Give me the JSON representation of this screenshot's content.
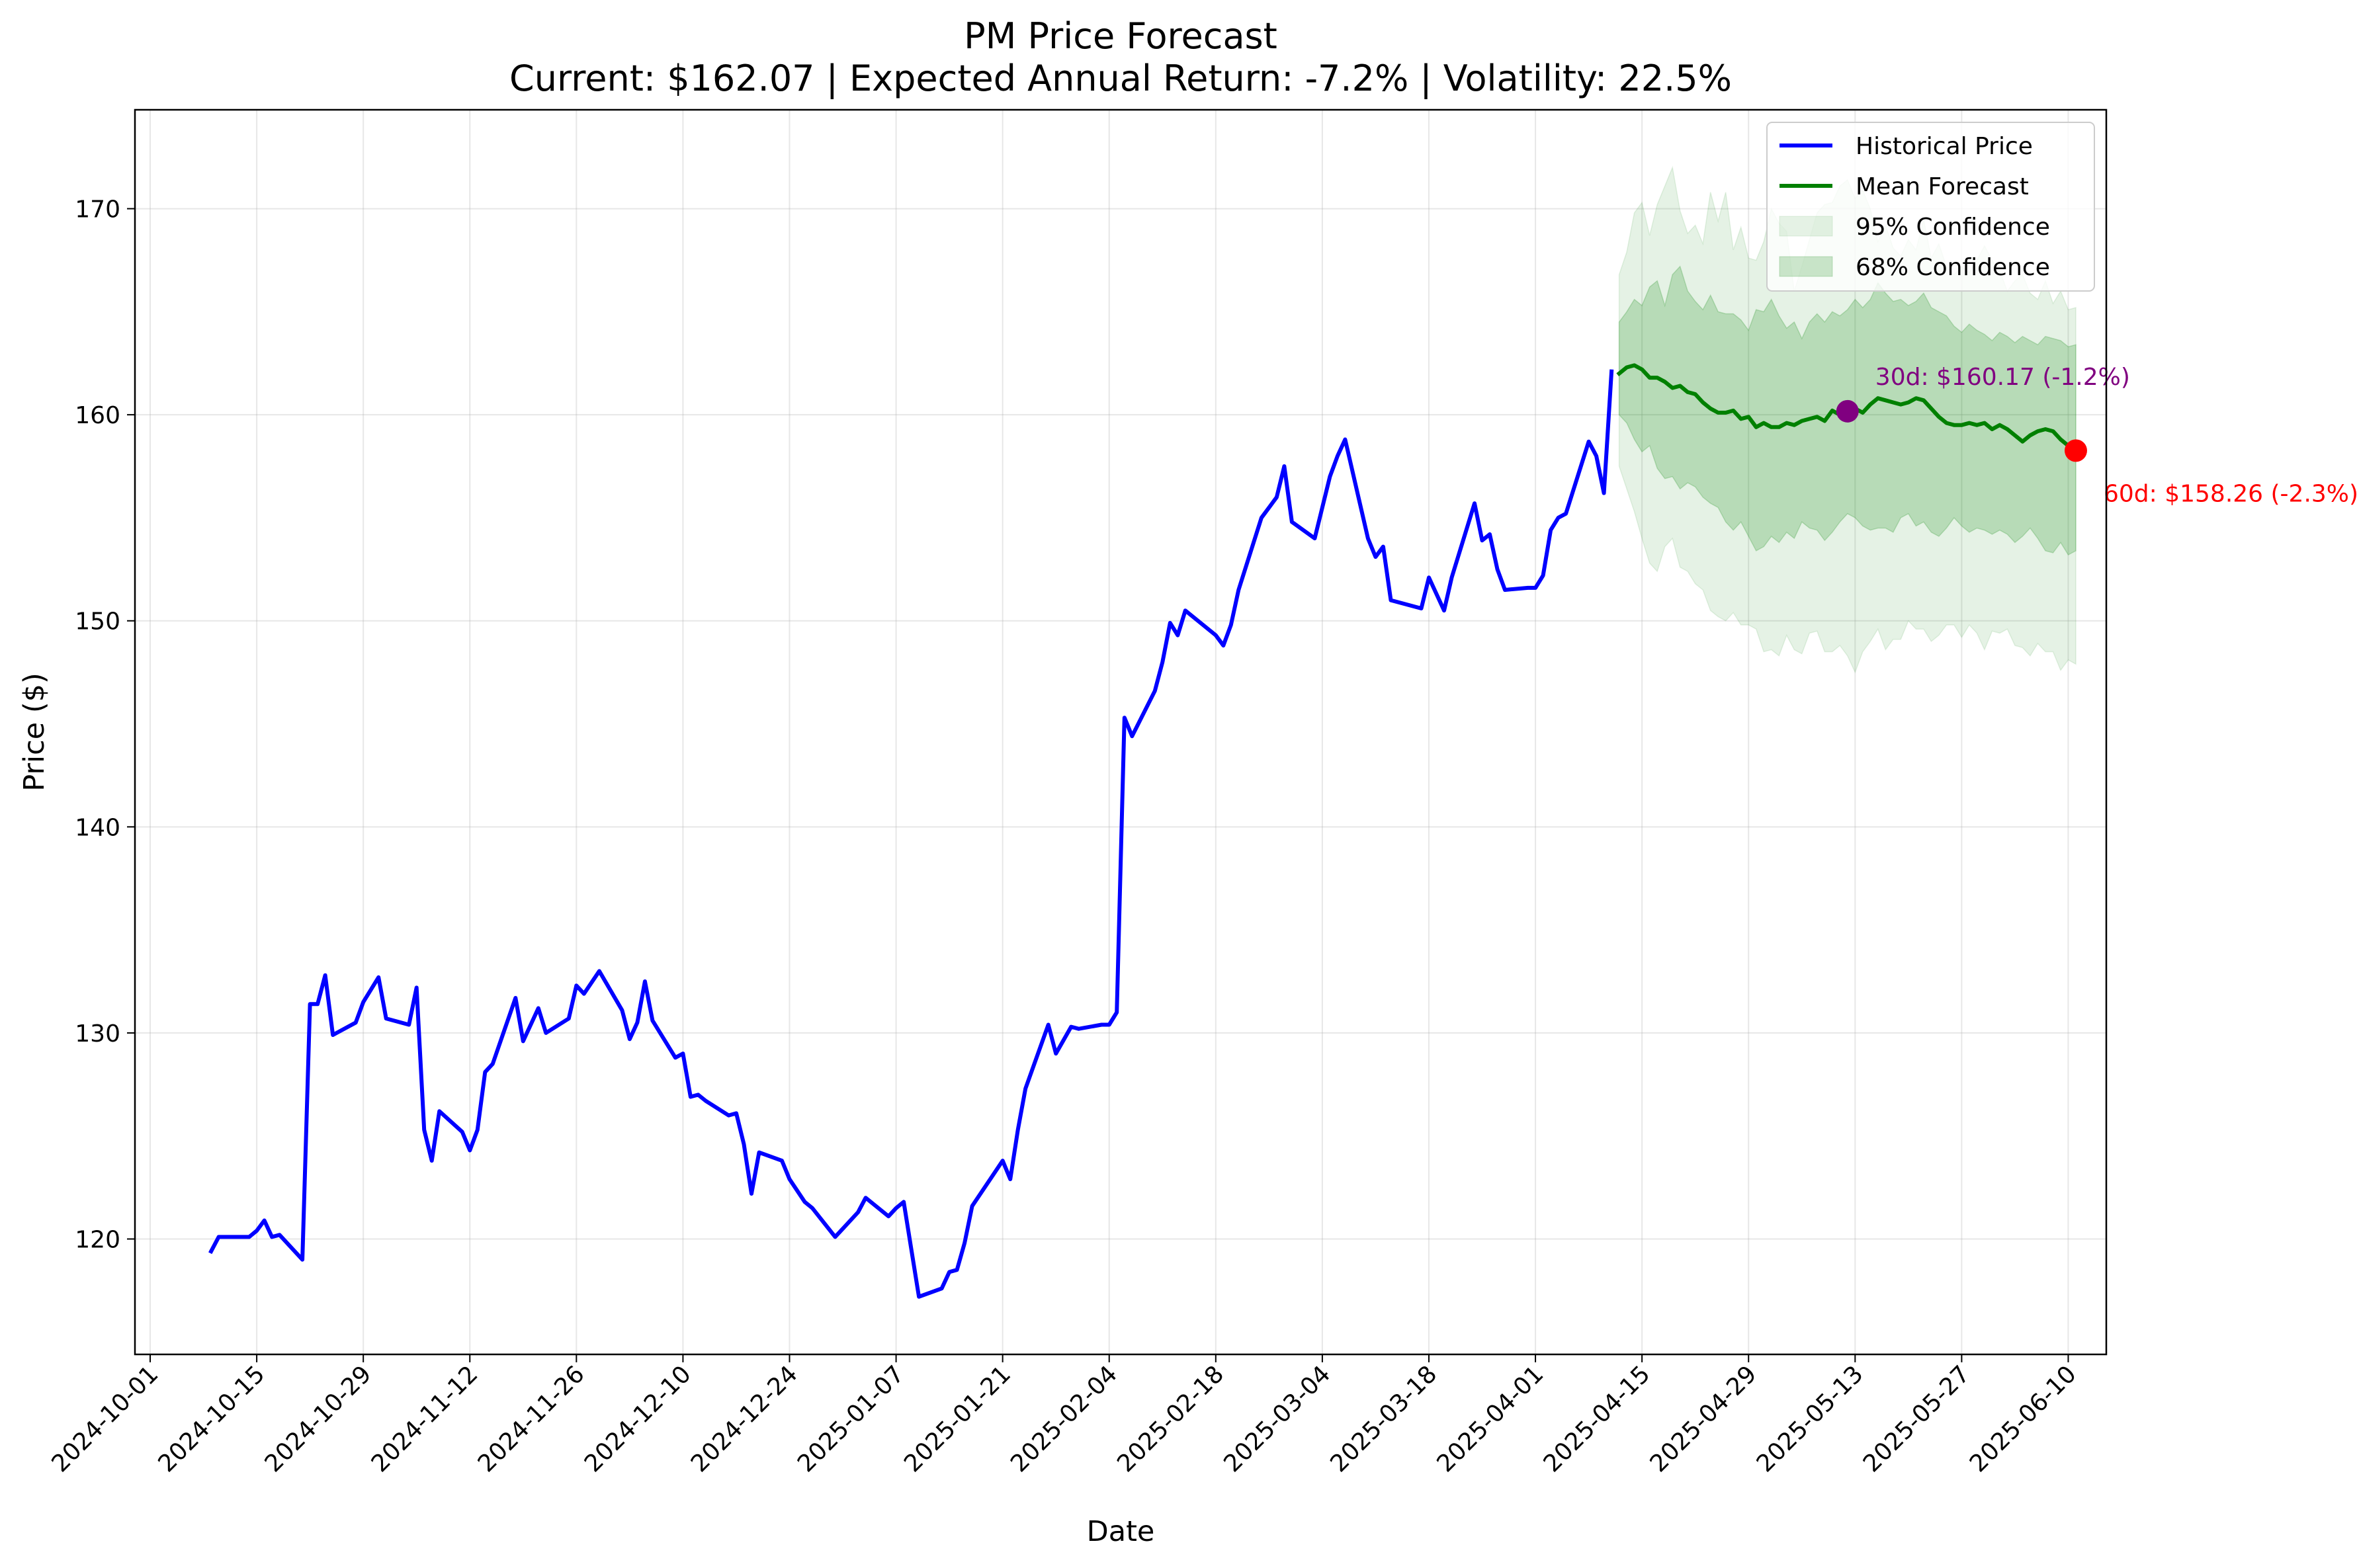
{
  "chart_data": {
    "type": "line",
    "title": "PM Price Forecast",
    "subtitle": "Current: $162.07 | Expected Annual Return: -7.2% | Volatility: 22.5%",
    "xlabel": "Date",
    "ylabel": "Price ($)",
    "xlim": [
      "2024-09-29",
      "2025-06-15"
    ],
    "ylim": [
      114.4,
      174.8
    ],
    "grid": true,
    "legend_position": "top-right",
    "x_ticks": [
      "2024-10-01",
      "2024-10-15",
      "2024-10-29",
      "2024-11-12",
      "2024-11-26",
      "2024-12-10",
      "2024-12-24",
      "2025-01-07",
      "2025-01-21",
      "2025-02-04",
      "2025-02-18",
      "2025-03-04",
      "2025-03-18",
      "2025-04-01",
      "2025-04-15",
      "2025-04-29",
      "2025-05-13",
      "2025-05-27",
      "2025-06-10"
    ],
    "y_ticks": [
      120,
      130,
      140,
      150,
      160,
      170
    ],
    "legend": [
      {
        "label": "Historical Price",
        "kind": "line",
        "color": "#0000ff"
      },
      {
        "label": "Mean Forecast",
        "kind": "line",
        "color": "#008000"
      },
      {
        "label": "95% Confidence",
        "kind": "band",
        "color": "#008000",
        "opacity": 0.1
      },
      {
        "label": "68% Confidence",
        "kind": "band",
        "color": "#008000",
        "opacity": 0.2
      }
    ],
    "series": [
      {
        "name": "Historical Price",
        "color": "#0000ff",
        "points": [
          [
            "2024-10-09",
            119.4
          ],
          [
            "2024-10-10",
            120.1
          ],
          [
            "2024-10-11",
            120.1
          ],
          [
            "2024-10-14",
            120.1
          ],
          [
            "2024-10-15",
            120.4
          ],
          [
            "2024-10-16",
            120.9
          ],
          [
            "2024-10-17",
            120.1
          ],
          [
            "2024-10-18",
            120.2
          ],
          [
            "2024-10-21",
            119.0
          ],
          [
            "2024-10-22",
            131.4
          ],
          [
            "2024-10-23",
            131.4
          ],
          [
            "2024-10-24",
            132.8
          ],
          [
            "2024-10-25",
            129.9
          ],
          [
            "2024-10-28",
            130.5
          ],
          [
            "2024-10-29",
            131.5
          ],
          [
            "2024-10-31",
            132.7
          ],
          [
            "2024-11-01",
            130.7
          ],
          [
            "2024-11-04",
            130.4
          ],
          [
            "2024-11-05",
            132.2
          ],
          [
            "2024-11-06",
            125.3
          ],
          [
            "2024-11-07",
            123.8
          ],
          [
            "2024-11-08",
            126.2
          ],
          [
            "2024-11-11",
            125.2
          ],
          [
            "2024-11-12",
            124.3
          ],
          [
            "2024-11-13",
            125.3
          ],
          [
            "2024-11-14",
            128.1
          ],
          [
            "2024-11-15",
            128.5
          ],
          [
            "2024-11-18",
            131.7
          ],
          [
            "2024-11-19",
            129.6
          ],
          [
            "2024-11-21",
            131.2
          ],
          [
            "2024-11-22",
            130.0
          ],
          [
            "2024-11-25",
            130.7
          ],
          [
            "2024-11-26",
            132.3
          ],
          [
            "2024-11-27",
            131.9
          ],
          [
            "2024-11-29",
            133.0
          ],
          [
            "2024-12-02",
            131.1
          ],
          [
            "2024-12-03",
            129.7
          ],
          [
            "2024-12-04",
            130.5
          ],
          [
            "2024-12-05",
            132.5
          ],
          [
            "2024-12-06",
            130.6
          ],
          [
            "2024-12-09",
            128.8
          ],
          [
            "2024-12-10",
            129.0
          ],
          [
            "2024-12-11",
            126.9
          ],
          [
            "2024-12-12",
            127.0
          ],
          [
            "2024-12-13",
            126.7
          ],
          [
            "2024-12-16",
            126.0
          ],
          [
            "2024-12-17",
            126.1
          ],
          [
            "2024-12-18",
            124.6
          ],
          [
            "2024-12-19",
            122.2
          ],
          [
            "2024-12-20",
            124.2
          ],
          [
            "2024-12-23",
            123.8
          ],
          [
            "2024-12-24",
            122.9
          ],
          [
            "2024-12-26",
            121.8
          ],
          [
            "2024-12-27",
            121.5
          ],
          [
            "2024-12-30",
            120.1
          ],
          [
            "2025-01-02",
            121.3
          ],
          [
            "2025-01-03",
            122.0
          ],
          [
            "2025-01-06",
            121.1
          ],
          [
            "2025-01-07",
            121.5
          ],
          [
            "2025-01-08",
            121.8
          ],
          [
            "2025-01-10",
            117.2
          ],
          [
            "2025-01-13",
            117.6
          ],
          [
            "2025-01-14",
            118.4
          ],
          [
            "2025-01-15",
            118.5
          ],
          [
            "2025-01-16",
            119.8
          ],
          [
            "2025-01-17",
            121.6
          ],
          [
            "2025-01-21",
            123.8
          ],
          [
            "2025-01-22",
            122.9
          ],
          [
            "2025-01-23",
            125.3
          ],
          [
            "2025-01-24",
            127.3
          ],
          [
            "2025-01-27",
            130.4
          ],
          [
            "2025-01-28",
            129.0
          ],
          [
            "2025-01-30",
            130.3
          ],
          [
            "2025-01-31",
            130.2
          ],
          [
            "2025-02-03",
            130.4
          ],
          [
            "2025-02-04",
            130.4
          ],
          [
            "2025-02-05",
            131.0
          ],
          [
            "2025-02-06",
            145.3
          ],
          [
            "2025-02-07",
            144.4
          ],
          [
            "2025-02-10",
            146.6
          ],
          [
            "2025-02-11",
            148.0
          ],
          [
            "2025-02-12",
            149.9
          ],
          [
            "2025-02-13",
            149.3
          ],
          [
            "2025-02-14",
            150.5
          ],
          [
            "2025-02-18",
            149.3
          ],
          [
            "2025-02-19",
            148.8
          ],
          [
            "2025-02-20",
            149.8
          ],
          [
            "2025-02-21",
            151.5
          ],
          [
            "2025-02-24",
            155.0
          ],
          [
            "2025-02-25",
            155.5
          ],
          [
            "2025-02-26",
            156.0
          ],
          [
            "2025-02-27",
            157.5
          ],
          [
            "2025-02-28",
            154.8
          ],
          [
            "2025-03-03",
            154.0
          ],
          [
            "2025-03-05",
            157.0
          ],
          [
            "2025-03-06",
            158.0
          ],
          [
            "2025-03-07",
            158.8
          ],
          [
            "2025-03-10",
            154.0
          ],
          [
            "2025-03-11",
            153.1
          ],
          [
            "2025-03-12",
            153.6
          ],
          [
            "2025-03-13",
            151.0
          ],
          [
            "2025-03-17",
            150.6
          ],
          [
            "2025-03-18",
            152.1
          ],
          [
            "2025-03-20",
            150.5
          ],
          [
            "2025-03-21",
            152.1
          ],
          [
            "2025-03-24",
            155.7
          ],
          [
            "2025-03-25",
            153.9
          ],
          [
            "2025-03-26",
            154.2
          ],
          [
            "2025-03-27",
            152.5
          ],
          [
            "2025-03-28",
            151.5
          ],
          [
            "2025-03-31",
            151.6
          ],
          [
            "2025-04-01",
            151.6
          ],
          [
            "2025-04-02",
            152.2
          ],
          [
            "2025-04-03",
            154.4
          ],
          [
            "2025-04-04",
            155.0
          ],
          [
            "2025-04-05",
            155.2
          ],
          [
            "2025-04-08",
            158.7
          ],
          [
            "2025-04-09",
            158.0
          ],
          [
            "2025-04-10",
            156.2
          ],
          [
            "2025-04-11",
            162.1
          ]
        ]
      },
      {
        "name": "Mean Forecast",
        "color": "#008000",
        "start": "2025-04-12",
        "values": [
          162.0,
          162.3,
          162.4,
          162.2,
          161.8,
          161.8,
          161.6,
          161.3,
          161.4,
          161.1,
          161.0,
          160.6,
          160.3,
          160.1,
          160.1,
          160.2,
          159.8,
          159.9,
          159.4,
          159.6,
          159.4,
          159.4,
          159.6,
          159.5,
          159.7,
          159.8,
          159.9,
          159.7,
          160.2,
          160.0,
          160.17,
          160.3,
          160.1,
          160.5,
          160.8,
          160.7,
          160.6,
          160.5,
          160.6,
          160.8,
          160.7,
          160.3,
          159.9,
          159.6,
          159.5,
          159.5,
          159.6,
          159.5,
          159.6,
          159.3,
          159.5,
          159.3,
          159.0,
          158.7,
          159.0,
          159.2,
          159.3,
          159.2,
          158.8,
          158.5,
          158.26
        ]
      },
      {
        "name": "68% Confidence upper",
        "start": "2025-04-12",
        "values": [
          164.5,
          165.0,
          165.6,
          165.3,
          166.2,
          166.5,
          165.3,
          166.8,
          167.2,
          166.0,
          165.5,
          165.1,
          165.8,
          165.0,
          164.9,
          164.9,
          164.6,
          164.1,
          165.1,
          165.0,
          165.6,
          164.8,
          164.2,
          164.5,
          163.7,
          164.5,
          164.9,
          164.5,
          165.0,
          164.8,
          165.1,
          165.6,
          165.2,
          165.6,
          166.4,
          165.9,
          165.5,
          165.6,
          165.3,
          165.5,
          165.9,
          165.2,
          165.0,
          164.8,
          164.3,
          164.0,
          164.4,
          164.1,
          163.9,
          163.6,
          164.0,
          163.8,
          163.5,
          163.8,
          163.6,
          163.4,
          163.8,
          163.7,
          163.6,
          163.3,
          163.4
        ]
      },
      {
        "name": "68% Confidence lower",
        "start": "2025-04-12",
        "values": [
          160.0,
          159.6,
          158.8,
          158.2,
          158.5,
          157.4,
          156.9,
          157.0,
          156.4,
          156.7,
          156.5,
          156.0,
          155.7,
          155.5,
          154.8,
          154.4,
          154.8,
          154.1,
          153.4,
          153.6,
          154.1,
          153.8,
          154.3,
          154.0,
          154.8,
          154.5,
          154.4,
          153.9,
          154.3,
          154.8,
          155.2,
          155.0,
          154.6,
          154.4,
          154.5,
          154.5,
          154.3,
          155.0,
          155.2,
          154.6,
          154.8,
          154.3,
          154.1,
          154.5,
          155.0,
          154.6,
          154.3,
          154.5,
          154.4,
          154.2,
          154.4,
          154.2,
          153.8,
          154.1,
          154.5,
          154.0,
          153.4,
          153.3,
          153.8,
          153.2,
          153.4
        ]
      },
      {
        "name": "95% Confidence upper",
        "start": "2025-04-12",
        "values": [
          166.8,
          167.9,
          169.8,
          170.3,
          168.7,
          170.2,
          171.1,
          172.0,
          169.9,
          168.8,
          169.2,
          168.3,
          170.8,
          169.4,
          170.8,
          168.0,
          169.1,
          167.6,
          167.5,
          168.4,
          170.0,
          169.3,
          168.9,
          166.0,
          167.2,
          168.5,
          169.8,
          170.2,
          170.3,
          171.1,
          171.4,
          170.5,
          170.9,
          170.0,
          168.4,
          169.2,
          168.1,
          167.7,
          168.5,
          168.0,
          169.5,
          167.6,
          168.3,
          167.2,
          166.8,
          167.2,
          166.9,
          167.5,
          168.2,
          167.5,
          167.0,
          166.0,
          166.5,
          166.8,
          165.9,
          165.6,
          166.5,
          165.4,
          166.0,
          165.1,
          165.2
        ]
      },
      {
        "name": "95% Confidence lower",
        "start": "2025-04-12",
        "values": [
          157.5,
          156.4,
          155.3,
          154.0,
          152.8,
          152.4,
          153.6,
          154.0,
          152.6,
          152.4,
          151.8,
          151.5,
          150.5,
          150.2,
          150.0,
          150.4,
          149.8,
          149.8,
          149.6,
          148.5,
          148.6,
          148.3,
          149.3,
          148.6,
          148.4,
          149.4,
          149.5,
          148.5,
          148.5,
          148.8,
          148.3,
          147.5,
          148.5,
          149.0,
          149.6,
          148.6,
          149.1,
          149.1,
          150.0,
          149.6,
          149.6,
          149.0,
          149.3,
          149.8,
          149.8,
          149.2,
          149.8,
          149.4,
          148.6,
          149.5,
          149.4,
          149.6,
          148.8,
          148.7,
          148.3,
          148.9,
          148.5,
          148.5,
          147.6,
          148.1,
          147.9
        ]
      }
    ],
    "markers": [
      {
        "x": "2025-05-12",
        "y": 160.17,
        "color": "#800080",
        "label": "30d: $160.17 (-1.2%)"
      },
      {
        "x": "2025-06-11",
        "y": 158.26,
        "color": "#ff0000",
        "label": "60d: $158.26 (-2.3%)"
      }
    ]
  }
}
